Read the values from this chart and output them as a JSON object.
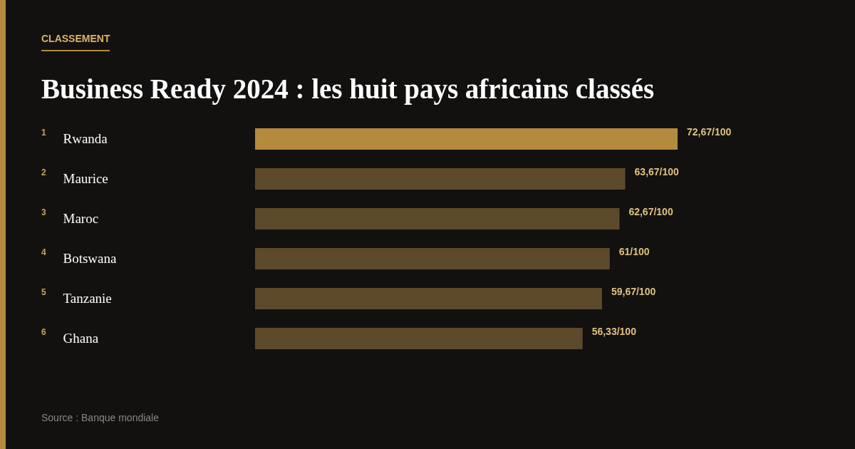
{
  "chart_data": {
    "type": "bar",
    "orientation": "horizontal",
    "subtitle": "CLASSEMENT",
    "title": "Business Ready 2024 : les huit pays africains classés",
    "categories": [
      "Rwanda",
      "Maurice",
      "Maroc",
      "Botswana",
      "Tanzanie",
      "Ghana"
    ],
    "values": [
      72.67,
      63.67,
      62.67,
      61,
      59.67,
      56.33
    ],
    "value_labels": [
      "72,67/100",
      "63,67/100",
      "62,67/100",
      "61/100",
      "59,67/100",
      "56,33/100"
    ],
    "colors": [
      "#b38a3e",
      "#5c4a2b",
      "#5c4a2b",
      "#5c4a2b",
      "#5c4a2b",
      "#5c4a2b"
    ],
    "annotations": [
      "1",
      "2",
      "3",
      "4",
      "5",
      "6",
      "Source : Banque mondiale"
    ]
  }
}
